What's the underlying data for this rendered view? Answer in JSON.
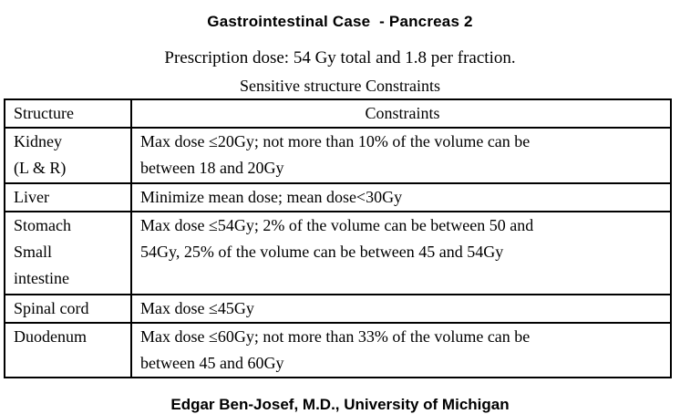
{
  "header": {
    "title": "Gastrointestinal Case  - Pancreas 2",
    "prescription": "Prescription dose: 54 Gy total and 1.8 per fraction.",
    "table_caption": "Sensitive structure Constraints"
  },
  "table": {
    "headers": [
      "Structure",
      "Constraints"
    ],
    "rows": [
      {
        "structure": "Kidney\n(L & R)",
        "constraint": "Max dose ≤20Gy; not more than 10% of the volume can be\nbetween 18 and 20Gy"
      },
      {
        "structure": "Liver",
        "constraint": "Minimize mean dose; mean dose<30Gy"
      },
      {
        "structure": "Stomach\nSmall\nintestine",
        "constraint": "Max dose ≤54Gy; 2% of the volume can be between 50 and\n54Gy, 25% of the volume can be between 45 and 54Gy"
      },
      {
        "structure": "Spinal cord",
        "constraint": "Max dose ≤45Gy"
      },
      {
        "structure": "Duodenum",
        "constraint": "Max dose ≤60Gy; not more than 33% of the volume can be\nbetween 45 and 60Gy"
      }
    ]
  },
  "footer": {
    "credit": "Edgar Ben-Josef, M.D., University of Michigan"
  },
  "colors": {
    "text": "#000000",
    "background": "#ffffff",
    "table_border": "#000000"
  }
}
